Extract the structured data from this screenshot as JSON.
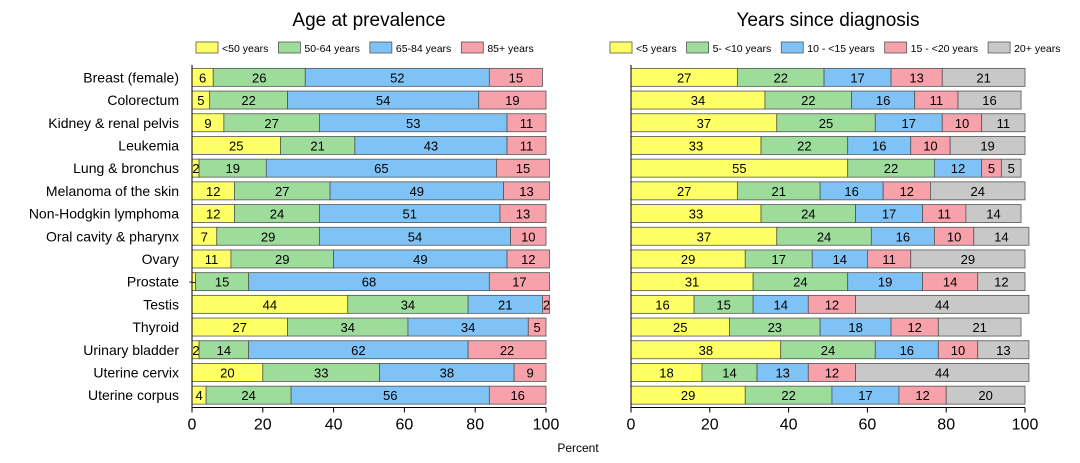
{
  "xlabel": "Percent",
  "categories": [
    "Breast (female)",
    "Colorectum",
    "Kidney & renal pelvis",
    "Leukemia",
    "Lung & bronchus",
    "Melanoma of the skin",
    "Non-Hodgkin lymphoma",
    "Oral cavity & pharynx",
    "Ovary",
    "Prostate",
    "Testis",
    "Thyroid",
    "Urinary bladder",
    "Uterine cervix",
    "Uterine corpus"
  ],
  "colors": {
    "yellow": "#ffff66",
    "green": "#9ddc9b",
    "blue": "#7fc3f6",
    "pink": "#f7a1ab",
    "gray": "#c8c8c8",
    "stroke": "#555555"
  },
  "chart_data": [
    {
      "type": "bar",
      "stacked": true,
      "orientation": "horizontal",
      "title": "Age at prevalence",
      "xlabel": "Percent",
      "xlim": [
        0,
        100
      ],
      "xticks": [
        0,
        20,
        40,
        60,
        80,
        100
      ],
      "legend_position": "top",
      "series": [
        {
          "name": "<50 years",
          "color": "#ffff66",
          "values": [
            6,
            5,
            9,
            25,
            2,
            12,
            12,
            7,
            11,
            1,
            44,
            27,
            2,
            20,
            4
          ],
          "labels": [
            "6",
            "5",
            "9",
            "25",
            "2",
            "12",
            "12",
            "7",
            "11",
            "~1",
            "44",
            "27",
            "2",
            "20",
            "4"
          ]
        },
        {
          "name": "50-64 years",
          "color": "#9ddc9b",
          "values": [
            26,
            22,
            27,
            21,
            19,
            27,
            24,
            29,
            29,
            15,
            34,
            34,
            14,
            33,
            24
          ],
          "labels": [
            "26",
            "22",
            "27",
            "21",
            "19",
            "27",
            "24",
            "29",
            "29",
            "15",
            "34",
            "34",
            "14",
            "33",
            "24"
          ]
        },
        {
          "name": "65-84 years",
          "color": "#7fc3f6",
          "values": [
            52,
            54,
            53,
            43,
            65,
            49,
            51,
            54,
            49,
            68,
            21,
            34,
            62,
            38,
            56
          ],
          "labels": [
            "52",
            "54",
            "53",
            "43",
            "65",
            "49",
            "51",
            "54",
            "49",
            "68",
            "21",
            "34",
            "62",
            "38",
            "56"
          ]
        },
        {
          "name": "85+ years",
          "color": "#f7a1ab",
          "values": [
            15,
            19,
            11,
            11,
            15,
            13,
            13,
            10,
            12,
            17,
            2,
            5,
            22,
            9,
            16
          ],
          "labels": [
            "15",
            "19",
            "11",
            "11",
            "15",
            "13",
            "13",
            "10",
            "12",
            "17",
            "2",
            "5",
            "22",
            "9",
            "16"
          ]
        }
      ]
    },
    {
      "type": "bar",
      "stacked": true,
      "orientation": "horizontal",
      "title": "Years since diagnosis",
      "xlabel": "Percent",
      "xlim": [
        0,
        100
      ],
      "xticks": [
        0,
        20,
        40,
        60,
        80,
        100
      ],
      "legend_position": "top",
      "series": [
        {
          "name": "<5 years",
          "color": "#ffff66",
          "values": [
            27,
            34,
            37,
            33,
            55,
            27,
            33,
            37,
            29,
            31,
            16,
            25,
            38,
            18,
            29
          ],
          "labels": [
            "27",
            "34",
            "37",
            "33",
            "55",
            "27",
            "33",
            "37",
            "29",
            "31",
            "16",
            "25",
            "38",
            "18",
            "29"
          ]
        },
        {
          "name": "5- <10 years",
          "color": "#9ddc9b",
          "values": [
            22,
            22,
            25,
            22,
            22,
            21,
            24,
            24,
            17,
            24,
            15,
            23,
            24,
            14,
            22
          ],
          "labels": [
            "22",
            "22",
            "25",
            "22",
            "22",
            "21",
            "24",
            "24",
            "17",
            "24",
            "15",
            "23",
            "24",
            "14",
            "22"
          ]
        },
        {
          "name": "10 - <15 years",
          "color": "#7fc3f6",
          "values": [
            17,
            16,
            17,
            16,
            12,
            16,
            17,
            16,
            14,
            19,
            14,
            18,
            16,
            13,
            17
          ],
          "labels": [
            "17",
            "16",
            "17",
            "16",
            "12",
            "16",
            "17",
            "16",
            "14",
            "19",
            "14",
            "18",
            "16",
            "13",
            "17"
          ]
        },
        {
          "name": "15 - <20 years",
          "color": "#f7a1ab",
          "values": [
            13,
            11,
            10,
            10,
            5,
            12,
            11,
            10,
            11,
            14,
            12,
            12,
            10,
            12,
            12
          ],
          "labels": [
            "13",
            "11",
            "10",
            "10",
            "5",
            "12",
            "11",
            "10",
            "11",
            "14",
            "12",
            "12",
            "10",
            "12",
            "12"
          ]
        },
        {
          "name": "20+ years",
          "color": "#c8c8c8",
          "values": [
            21,
            16,
            11,
            19,
            5,
            24,
            14,
            14,
            29,
            12,
            44,
            21,
            13,
            44,
            20
          ],
          "labels": [
            "21",
            "16",
            "11",
            "19",
            "5",
            "24",
            "14",
            "14",
            "29",
            "12",
            "44",
            "21",
            "13",
            "44",
            "20"
          ]
        }
      ]
    }
  ]
}
